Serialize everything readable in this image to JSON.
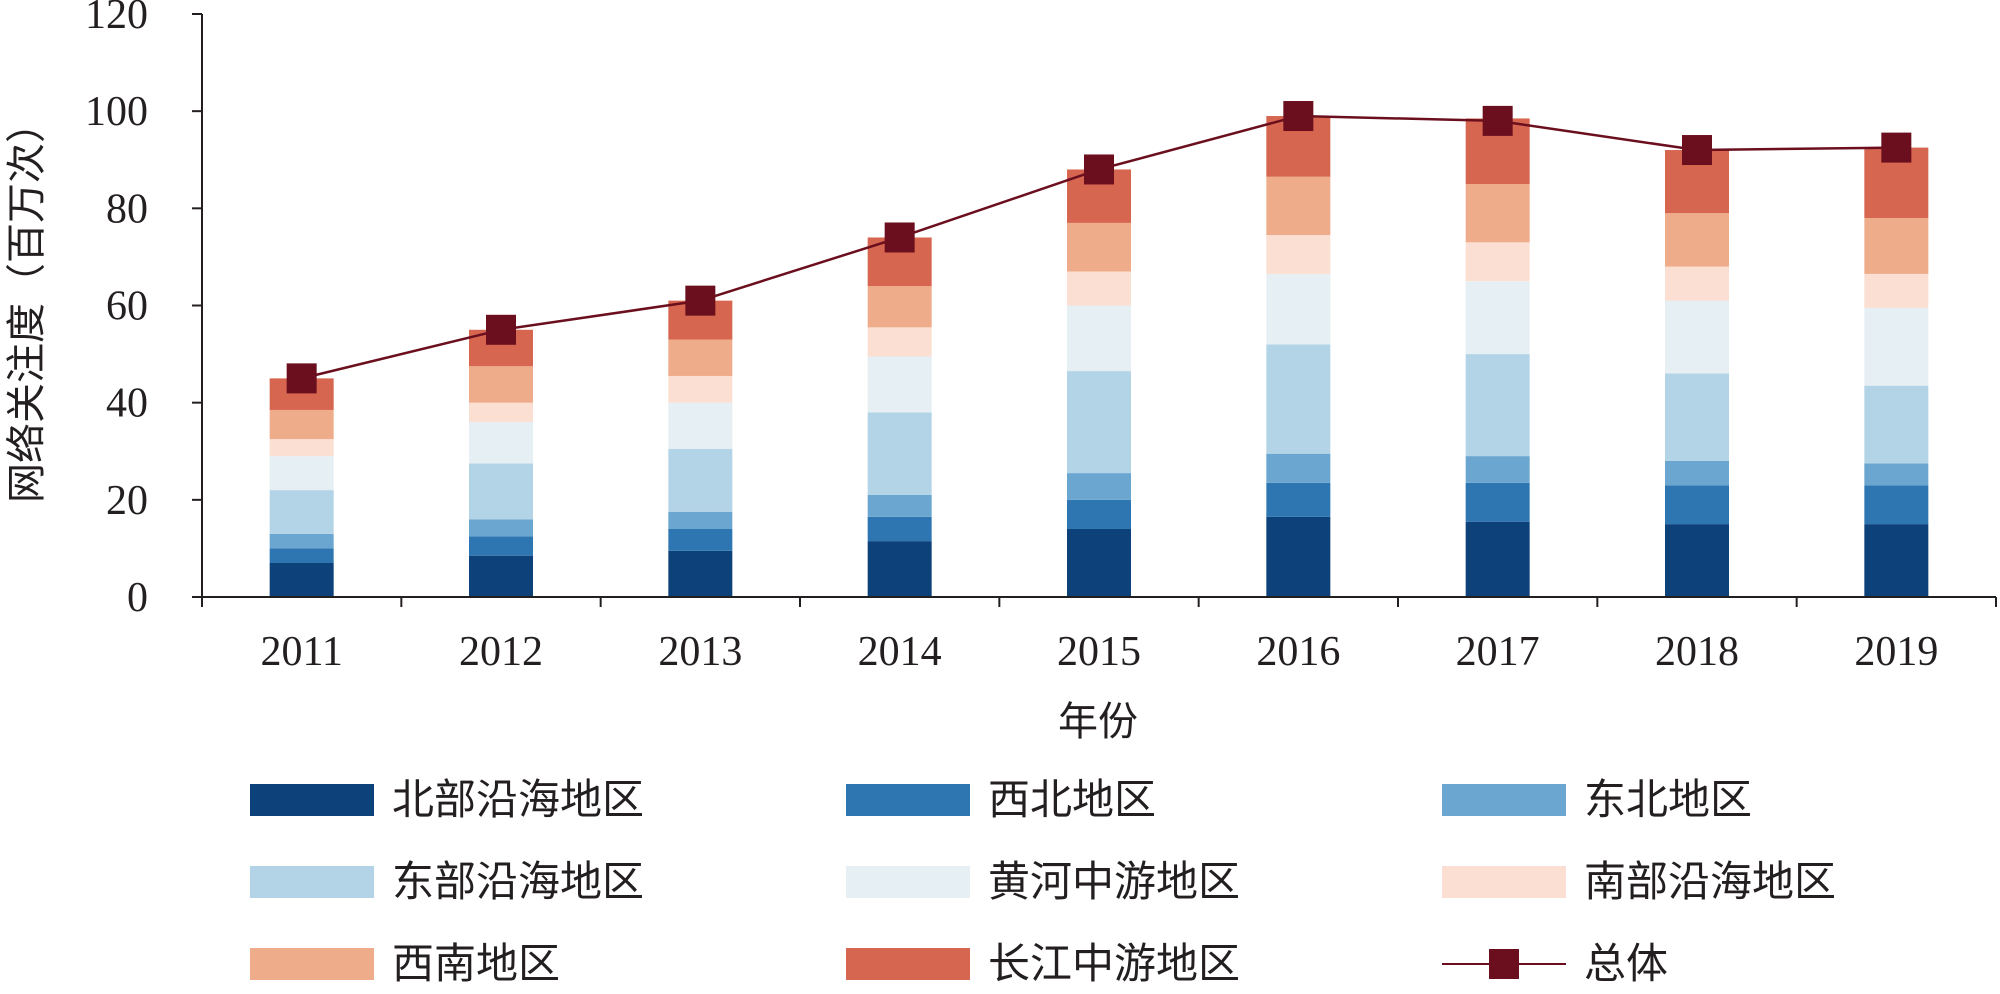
{
  "chart_data": {
    "type": "bar",
    "stacked": true,
    "xlabel": "年份",
    "ylabel": "网络关注度（百万次）",
    "ylim": [
      0,
      120
    ],
    "yticks": [
      0,
      20,
      40,
      60,
      80,
      100,
      120
    ],
    "categories": [
      "2011",
      "2012",
      "2013",
      "2014",
      "2015",
      "2016",
      "2017",
      "2018",
      "2019"
    ],
    "series": [
      {
        "name": "北部沿海地区",
        "color": "#0d4179",
        "values": [
          7,
          8.5,
          9.5,
          11.5,
          14,
          16.5,
          15.5,
          15,
          15
        ]
      },
      {
        "name": "西北地区",
        "color": "#2e76b1",
        "values": [
          3,
          4,
          4.5,
          5,
          6,
          7,
          8,
          8,
          8
        ]
      },
      {
        "name": "东北地区",
        "color": "#6aa6cf",
        "values": [
          3,
          3.5,
          3.5,
          4.5,
          5.5,
          6,
          5.5,
          5,
          4.5
        ]
      },
      {
        "name": "东部沿海地区",
        "color": "#b3d4e6",
        "values": [
          9,
          11.5,
          13,
          17,
          21,
          22.5,
          21,
          18,
          16
        ]
      },
      {
        "name": "黄河中游地区",
        "color": "#e6eff4",
        "values": [
          7,
          8.5,
          9.5,
          11.5,
          13.5,
          14.5,
          15,
          15,
          16
        ]
      },
      {
        "name": "南部沿海地区",
        "color": "#fadfd2",
        "values": [
          3.5,
          4,
          5.5,
          6,
          7,
          8,
          8,
          7,
          7
        ]
      },
      {
        "name": "西南地区",
        "color": "#efac8a",
        "values": [
          6,
          7.5,
          7.5,
          8.5,
          10,
          12,
          12,
          11,
          11.5
        ]
      },
      {
        "name": "长江中游地区",
        "color": "#d6664f",
        "values": [
          6.5,
          7.5,
          8,
          10,
          11,
          12.5,
          13.5,
          13,
          14.5
        ]
      }
    ],
    "line": {
      "name": "总体",
      "color": "#6b0f1e",
      "values": [
        45,
        55,
        61,
        74,
        88,
        99,
        98,
        92,
        92.5
      ]
    },
    "legend_position": "bottom",
    "grid": false
  }
}
